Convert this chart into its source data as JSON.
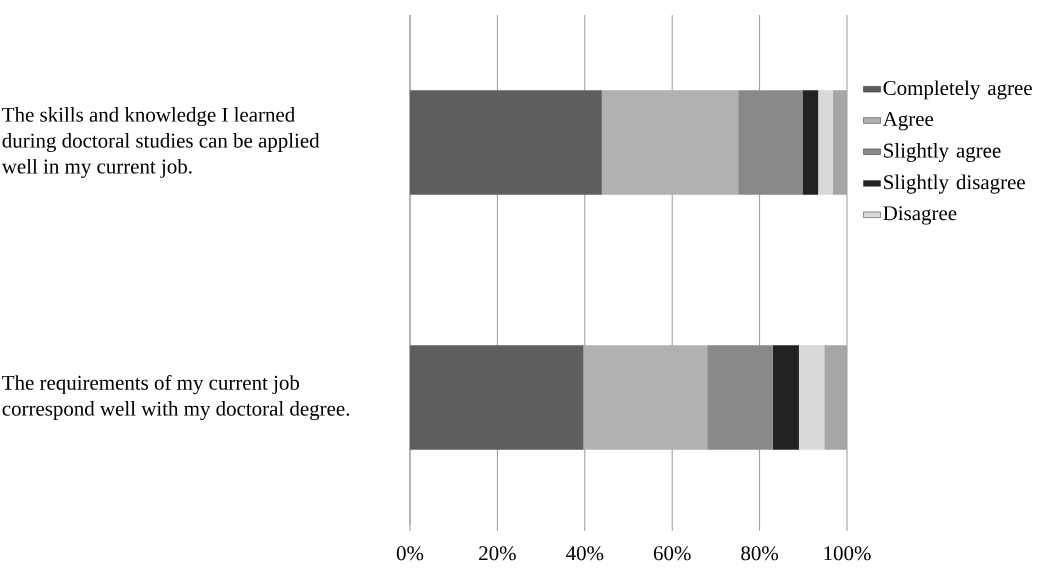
{
  "chart_data": {
    "type": "bar",
    "orientation": "horizontal",
    "stacked": true,
    "categories": [
      "The skills and knowledge I learned during doctoral studies can be applied well in my current job.",
      "The requirements of my current job correspond well with my doctoral degree."
    ],
    "series": [
      {
        "name": "Completely agree",
        "color": "#5e5e5e",
        "values": [
          43.9,
          39.7
        ]
      },
      {
        "name": "Agree",
        "color": "#b1b1b1",
        "values": [
          31.2,
          28.3
        ]
      },
      {
        "name": "Slightly agree",
        "color": "#898989",
        "values": [
          14.7,
          15.0
        ]
      },
      {
        "name": "Slightly disagree",
        "color": "#222222",
        "values": [
          3.6,
          6.0
        ]
      },
      {
        "name": "Disagree",
        "color": "#d9d9d9",
        "values": [
          3.4,
          5.8
        ]
      },
      {
        "color": "#a6a6a6",
        "values": [
          3.2,
          5.2
        ]
      }
    ],
    "xlim": [
      0,
      100
    ],
    "xticks": [
      {
        "value": 0,
        "label": "0%"
      },
      {
        "value": 20,
        "label": "20%"
      },
      {
        "value": 40,
        "label": "40%"
      },
      {
        "value": 60,
        "label": "60%"
      },
      {
        "value": 80,
        "label": "80%"
      },
      {
        "value": 100,
        "label": "100%"
      }
    ],
    "grid": "x",
    "legend": "right"
  }
}
